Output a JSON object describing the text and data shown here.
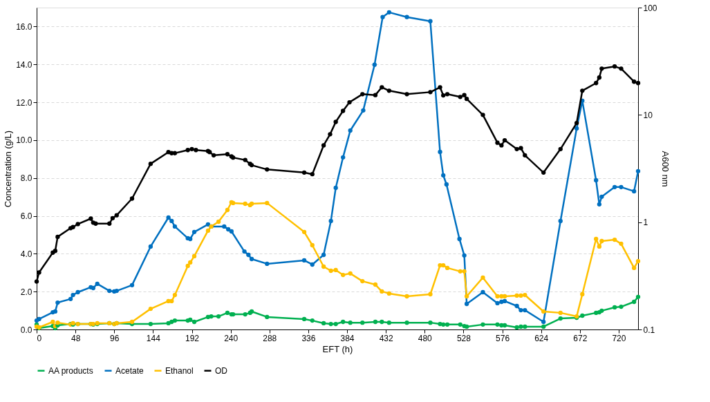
{
  "chart_data": {
    "type": "line",
    "xlabel": "EFT (h)",
    "ylabel": "Concentration (g/L)",
    "y2label": "A600 nm",
    "xlim": [
      0,
      744
    ],
    "xticks": [
      0,
      48,
      96,
      144,
      192,
      240,
      288,
      336,
      384,
      432,
      480,
      528,
      576,
      624,
      672,
      720
    ],
    "ylim": [
      0,
      17
    ],
    "yticks": [
      {
        "value": 0,
        "label": "0.0"
      },
      {
        "value": 2,
        "label": "2.0"
      },
      {
        "value": 4,
        "label": "4.0"
      },
      {
        "value": 6,
        "label": "6.0"
      },
      {
        "value": 8,
        "label": "8.0"
      },
      {
        "value": 10,
        "label": "10.0"
      },
      {
        "value": 12,
        "label": "12.0"
      },
      {
        "value": 14,
        "label": "14.0"
      },
      {
        "value": 16,
        "label": "16.0"
      }
    ],
    "y2lim": [
      0.1,
      100
    ],
    "y2ticks": [
      0.1,
      1,
      10,
      100
    ],
    "log": "y2",
    "grid": "y",
    "legend": "bottom",
    "marker": "circle",
    "line_style": "solid",
    "series": [
      {
        "name": "AA products",
        "color": "#00b050",
        "x": [
          0,
          3,
          20,
          23,
          26,
          42,
          45,
          51,
          67,
          70,
          75,
          90,
          96,
          99,
          118,
          141,
          163,
          167,
          171,
          187,
          190,
          195,
          212,
          216,
          225,
          236,
          241,
          243,
          258,
          264,
          266,
          285,
          331,
          341,
          355,
          364,
          370,
          379,
          388,
          403,
          419,
          427,
          436,
          458,
          487,
          499,
          503,
          508,
          524,
          529,
          532,
          552,
          570,
          575,
          579,
          594,
          599,
          604,
          627,
          648,
          668,
          675,
          692,
          696,
          699,
          715,
          723,
          739,
          744
        ],
        "values": [
          0.26,
          0.07,
          0.18,
          0.07,
          0.22,
          0.29,
          0.26,
          0.29,
          0.29,
          0.26,
          0.29,
          0.33,
          0.29,
          0.33,
          0.29,
          0.29,
          0.33,
          0.4,
          0.47,
          0.47,
          0.51,
          0.4,
          0.66,
          0.69,
          0.69,
          0.88,
          0.8,
          0.8,
          0.8,
          0.88,
          0.95,
          0.66,
          0.55,
          0.47,
          0.33,
          0.29,
          0.29,
          0.4,
          0.36,
          0.36,
          0.4,
          0.4,
          0.36,
          0.36,
          0.36,
          0.29,
          0.26,
          0.26,
          0.26,
          0.18,
          0.15,
          0.26,
          0.26,
          0.22,
          0.22,
          0.11,
          0.15,
          0.15,
          0.15,
          0.58,
          0.62,
          0.73,
          0.88,
          0.91,
          0.99,
          1.17,
          1.2,
          1.46,
          1.72
        ]
      },
      {
        "name": "Acetate",
        "color": "#0070c0",
        "x": [
          0,
          3,
          20,
          23,
          26,
          42,
          45,
          51,
          67,
          70,
          75,
          90,
          96,
          99,
          118,
          141,
          163,
          167,
          171,
          187,
          190,
          195,
          212,
          216,
          232,
          237,
          241,
          257,
          262,
          266,
          285,
          331,
          341,
          355,
          364,
          370,
          379,
          388,
          404,
          418,
          428,
          436,
          458,
          487,
          499,
          503,
          507,
          523,
          529,
          532,
          552,
          570,
          575,
          579,
          594,
          599,
          604,
          627,
          648,
          668,
          675,
          692,
          696,
          699,
          715,
          723,
          739,
          744
        ],
        "values": [
          0.47,
          0.55,
          0.91,
          0.95,
          1.42,
          1.61,
          1.82,
          1.97,
          2.23,
          2.19,
          2.41,
          2.04,
          2.01,
          2.04,
          2.34,
          4.38,
          5.91,
          5.73,
          5.44,
          4.82,
          4.78,
          5.15,
          5.55,
          5.44,
          5.44,
          5.29,
          5.18,
          4.12,
          3.94,
          3.72,
          3.47,
          3.65,
          3.43,
          3.94,
          5.73,
          7.48,
          9.09,
          10.51,
          11.57,
          13.98,
          16.5,
          16.75,
          16.5,
          16.28,
          9.38,
          8.14,
          7.66,
          4.78,
          3.91,
          1.35,
          1.97,
          1.39,
          1.46,
          1.5,
          1.24,
          1.02,
          1.02,
          0.4,
          5.73,
          10.62,
          12.08,
          7.88,
          6.61,
          7.01,
          7.52,
          7.52,
          7.3,
          8.36
        ]
      },
      {
        "name": "Ethanol",
        "color": "#ffc000",
        "x": [
          0,
          3,
          20,
          23,
          26,
          42,
          45,
          51,
          67,
          70,
          75,
          90,
          96,
          99,
          118,
          141,
          163,
          167,
          171,
          187,
          190,
          195,
          212,
          216,
          225,
          236,
          241,
          243,
          258,
          264,
          266,
          285,
          331,
          341,
          355,
          364,
          370,
          379,
          388,
          403,
          419,
          427,
          436,
          458,
          487,
          499,
          503,
          508,
          524,
          529,
          532,
          552,
          570,
          575,
          579,
          594,
          599,
          604,
          627,
          648,
          668,
          675,
          692,
          696,
          699,
          715,
          723,
          739,
          744
        ],
        "values": [
          0.15,
          0.11,
          0.4,
          0.18,
          0.36,
          0.26,
          0.33,
          0.29,
          0.29,
          0.29,
          0.33,
          0.33,
          0.29,
          0.33,
          0.4,
          1.09,
          1.5,
          1.5,
          1.82,
          3.36,
          3.54,
          3.87,
          5.22,
          5.44,
          5.69,
          6.31,
          6.72,
          6.68,
          6.64,
          6.57,
          6.64,
          6.68,
          5.15,
          4.45,
          3.32,
          3.1,
          3.14,
          2.88,
          2.96,
          2.55,
          2.37,
          2.01,
          1.9,
          1.75,
          1.86,
          3.39,
          3.39,
          3.25,
          3.07,
          3.07,
          1.75,
          2.74,
          1.75,
          1.75,
          1.75,
          1.79,
          1.79,
          1.82,
          0.95,
          0.88,
          0.69,
          1.86,
          4.78,
          4.38,
          4.67,
          4.74,
          4.53,
          3.25,
          3.61
        ]
      },
      {
        "name": "OD",
        "color": "#000000",
        "axis": "y2",
        "x": [
          0,
          3,
          20,
          23,
          26,
          42,
          45,
          51,
          67,
          70,
          73,
          90,
          94,
          99,
          118,
          141,
          163,
          167,
          171,
          187,
          192,
          197,
          212,
          214,
          219,
          236,
          241,
          243,
          258,
          264,
          266,
          285,
          331,
          341,
          355,
          363,
          370,
          379,
          387,
          403,
          419,
          427,
          436,
          458,
          487,
          499,
          503,
          508,
          524,
          529,
          532,
          552,
          570,
          575,
          579,
          594,
          599,
          604,
          627,
          648,
          668,
          675,
          692,
          696,
          699,
          715,
          723,
          739,
          744
        ],
        "values": [
          0.28,
          0.34,
          0.52,
          0.54,
          0.73,
          0.88,
          0.9,
          0.96,
          1.08,
          0.99,
          0.97,
          0.97,
          1.09,
          1.16,
          1.66,
          3.5,
          4.5,
          4.4,
          4.4,
          4.7,
          4.8,
          4.7,
          4.6,
          4.5,
          4.2,
          4.3,
          4.1,
          4.0,
          3.8,
          3.5,
          3.4,
          3.1,
          2.9,
          2.8,
          5.2,
          6.6,
          8.6,
          10.9,
          13.1,
          15.6,
          15.3,
          18.1,
          16.8,
          15.6,
          16.3,
          18.1,
          15.2,
          15.6,
          14.7,
          15.3,
          14.1,
          10,
          5.5,
          5.2,
          5.8,
          4.8,
          4.9,
          4.2,
          2.9,
          4.8,
          8.4,
          16.8,
          19.8,
          22.3,
          27,
          28.3,
          27,
          20.4,
          19.8
        ]
      }
    ]
  }
}
